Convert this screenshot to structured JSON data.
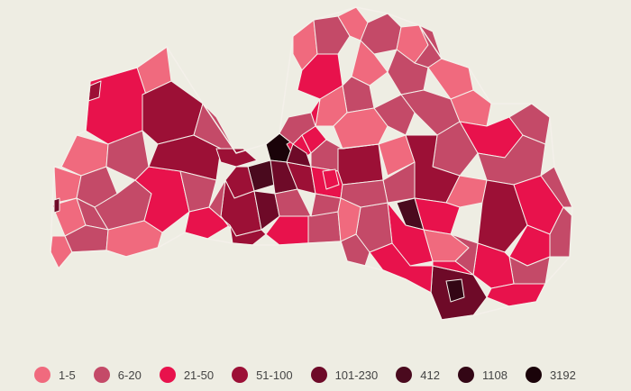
{
  "legend": {
    "items": [
      {
        "label": "1-5",
        "color": "#f06a7e"
      },
      {
        "label": "6-20",
        "color": "#c44a68"
      },
      {
        "label": "21-50",
        "color": "#e8124c"
      },
      {
        "label": "51-100",
        "color": "#9c1036"
      },
      {
        "label": "101-230",
        "color": "#6e0a28"
      },
      {
        "label": "412",
        "color": "#4a0a1e"
      },
      {
        "label": "1108",
        "color": "#330615"
      },
      {
        "label": "3192",
        "color": "#1a0309"
      }
    ]
  }
}
